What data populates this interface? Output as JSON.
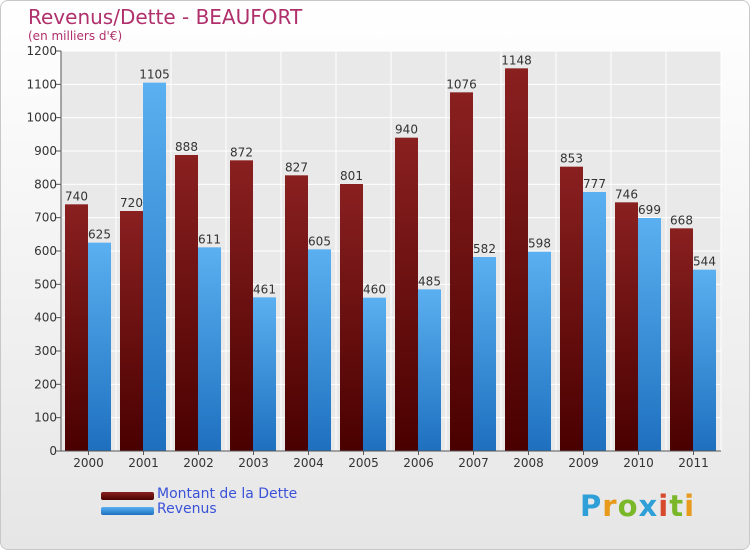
{
  "header": {
    "title": "Revenus/Dette - BEAUFORT",
    "subtitle": "(en milliers d'€)"
  },
  "legend": {
    "debt_label": "Montant de la Dette",
    "revenue_label": "Revenus"
  },
  "logo": {
    "text": "Proxiti",
    "letters": [
      {
        "ch": "P",
        "color": "#2f9fd8"
      },
      {
        "ch": "r",
        "color": "#e79a1c"
      },
      {
        "ch": "o",
        "color": "#7ab829"
      },
      {
        "ch": "x",
        "color": "#2f9fd8"
      },
      {
        "ch": "i",
        "color": "#d8482c"
      },
      {
        "ch": "t",
        "color": "#7ab829"
      },
      {
        "ch": "i",
        "color": "#e79a1c"
      }
    ]
  },
  "colors": {
    "debt": "#7a1414",
    "debt_dark": "#550000",
    "revenue": "#4aa3e6",
    "revenue_dark": "#1f6fbf",
    "title": "#b0306c",
    "legend_text": "#3a52d8"
  },
  "chart_data": {
    "type": "bar",
    "title": "Revenus/Dette - BEAUFORT",
    "subtitle": "(en milliers d'€)",
    "categories": [
      "2000",
      "2001",
      "2002",
      "2003",
      "2004",
      "2005",
      "2006",
      "2007",
      "2008",
      "2009",
      "2010",
      "2011"
    ],
    "series": [
      {
        "name": "Montant de la Dette",
        "values": [
          740,
          720,
          888,
          872,
          827,
          801,
          940,
          1076,
          1148,
          853,
          746,
          668
        ]
      },
      {
        "name": "Revenus",
        "values": [
          625,
          1105,
          611,
          461,
          605,
          460,
          485,
          582,
          598,
          777,
          699,
          544
        ]
      }
    ],
    "ylim": [
      0,
      1200
    ],
    "yticks": [
      0,
      100,
      200,
      300,
      400,
      500,
      600,
      700,
      800,
      900,
      1000,
      1100,
      1200
    ],
    "grid": true,
    "legend_position": "bottom-left"
  }
}
